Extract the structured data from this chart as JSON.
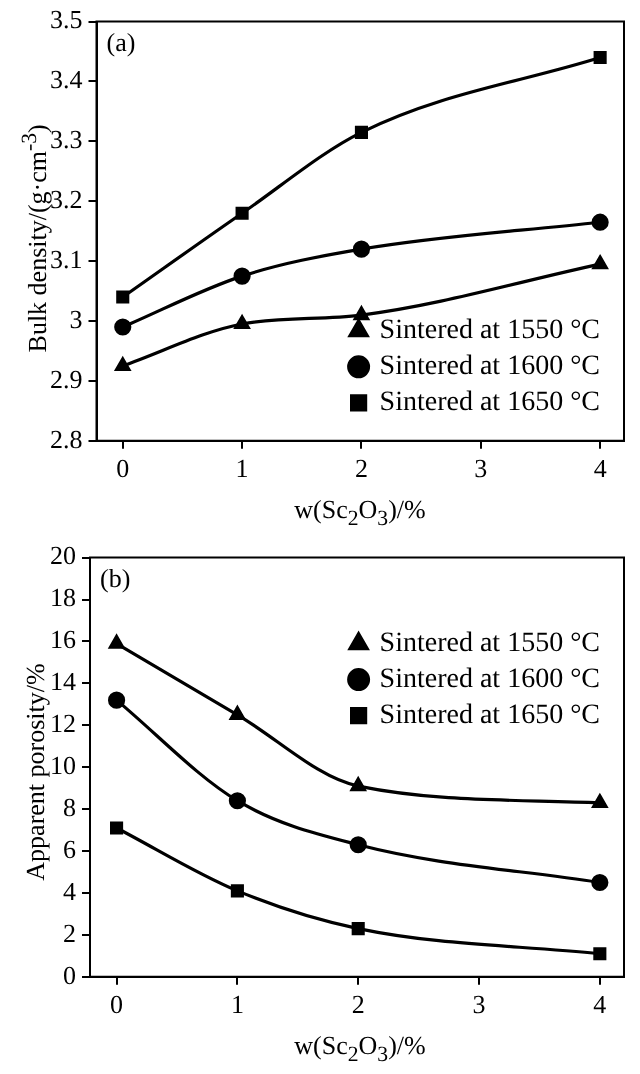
{
  "chart_data": [
    {
      "type": "line",
      "annotations": [
        "(a)"
      ],
      "xlabel": "w(Sc$_{2}$O$_{3}$)/%",
      "ylabel": "Bulk density/(g·cm$^{-3}$)",
      "x": [
        0,
        1,
        2,
        4
      ],
      "xlim": [
        -0.22,
        4.2
      ],
      "xticks": [
        0,
        1,
        2,
        3,
        4
      ],
      "ylim": [
        2.8,
        3.5
      ],
      "yticks": [
        2.8,
        2.9,
        3.0,
        3.1,
        3.2,
        3.3,
        3.4,
        3.5
      ],
      "grid": false,
      "legend": "bottom right",
      "line_style": "solid",
      "series": [
        {
          "name": "Sintered at 1550 °C",
          "color": "#000000",
          "marker": "triangle",
          "values": [
            2.925,
            2.995,
            3.01,
            3.095
          ]
        },
        {
          "name": "Sintered at 1600 °C",
          "color": "#000000",
          "marker": "circle",
          "values": [
            2.99,
            3.075,
            3.12,
            3.165
          ]
        },
        {
          "name": "Sintered at 1650 °C",
          "color": "#000000",
          "marker": "square",
          "values": [
            3.04,
            3.18,
            3.315,
            3.44
          ]
        }
      ]
    },
    {
      "type": "line",
      "annotations": [
        "(b)"
      ],
      "xlabel": "w(Sc$_{2}$O$_{3}$)/%",
      "ylabel": "Apparent porosity/%",
      "x": [
        0,
        1,
        2,
        4
      ],
      "xlim": [
        -0.22,
        4.2
      ],
      "xticks": [
        0,
        1,
        2,
        3,
        4
      ],
      "ylim": [
        0,
        20
      ],
      "yticks": [
        0,
        2,
        4,
        6,
        8,
        10,
        12,
        14,
        16,
        18,
        20
      ],
      "grid": false,
      "legend": "top right",
      "line_style": "solid",
      "series": [
        {
          "name": "Sintered at 1550 °C",
          "color": "#000000",
          "marker": "triangle",
          "values": [
            15.9,
            12.5,
            9.1,
            8.3
          ]
        },
        {
          "name": "Sintered at 1600 °C",
          "color": "#000000",
          "marker": "circle",
          "values": [
            13.2,
            8.4,
            6.3,
            4.5
          ]
        },
        {
          "name": "Sintered at 1650 °C",
          "color": "#000000",
          "marker": "square",
          "values": [
            7.1,
            4.1,
            2.3,
            1.1
          ]
        }
      ]
    }
  ]
}
